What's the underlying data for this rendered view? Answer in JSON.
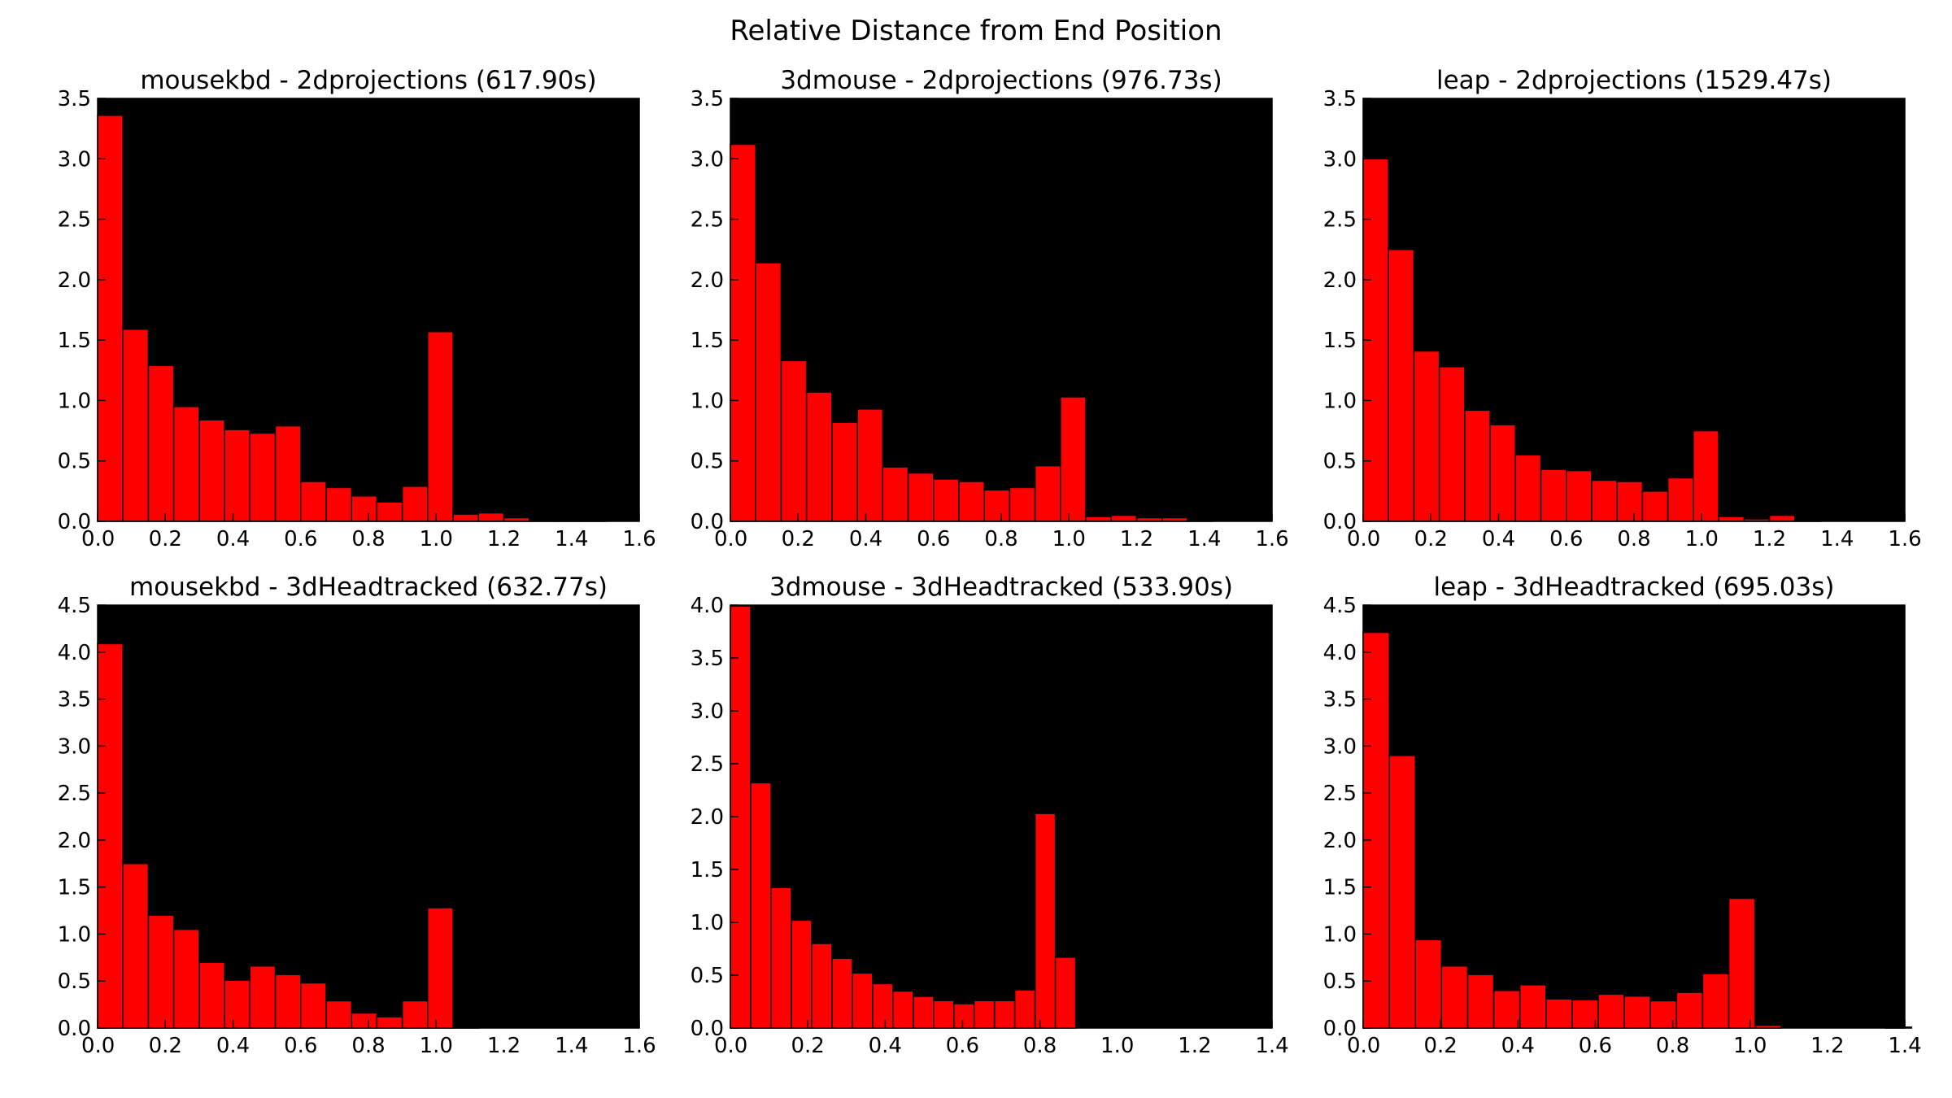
{
  "figure": {
    "title": "Relative Distance from End Position",
    "background": "#000000",
    "bar_color": "#ff0000"
  },
  "chart_data": [
    {
      "type": "bar",
      "title": "mousekbd - 2dprojections (617.90s)",
      "bin_width": 0.075,
      "x": [
        0.0,
        0.075,
        0.15,
        0.225,
        0.3,
        0.375,
        0.45,
        0.525,
        0.6,
        0.675,
        0.75,
        0.825,
        0.9,
        0.975,
        1.05,
        1.125,
        1.2,
        1.275,
        1.35,
        1.425
      ],
      "values": [
        3.36,
        1.59,
        1.29,
        0.95,
        0.84,
        0.76,
        0.73,
        0.79,
        0.33,
        0.28,
        0.21,
        0.16,
        0.29,
        1.57,
        0.06,
        0.07,
        0.03,
        0.01,
        0.01,
        0.01
      ],
      "xlim": [
        0.0,
        1.6
      ],
      "ylim": [
        0.0,
        3.5
      ],
      "xticks": [
        "0.0",
        "0.2",
        "0.4",
        "0.6",
        "0.8",
        "1.0",
        "1.2",
        "1.4",
        "1.6"
      ],
      "yticks": [
        "0.0",
        "0.5",
        "1.0",
        "1.5",
        "2.0",
        "2.5",
        "3.0",
        "3.5"
      ],
      "xlabel": "",
      "ylabel": "",
      "grid": false
    },
    {
      "type": "bar",
      "title": "3dmouse - 2dprojections (976.73s)",
      "bin_width": 0.075,
      "x": [
        0.0,
        0.075,
        0.15,
        0.225,
        0.3,
        0.375,
        0.45,
        0.525,
        0.6,
        0.675,
        0.75,
        0.825,
        0.9,
        0.975,
        1.05,
        1.125,
        1.2,
        1.275,
        1.35
      ],
      "values": [
        3.12,
        2.14,
        1.33,
        1.07,
        0.82,
        0.93,
        0.45,
        0.4,
        0.35,
        0.33,
        0.26,
        0.28,
        0.46,
        1.03,
        0.04,
        0.05,
        0.03,
        0.03,
        0.01
      ],
      "xlim": [
        0.0,
        1.6
      ],
      "ylim": [
        0.0,
        3.5
      ],
      "xticks": [
        "0.0",
        "0.2",
        "0.4",
        "0.6",
        "0.8",
        "1.0",
        "1.2",
        "1.4",
        "1.6"
      ],
      "yticks": [
        "0.0",
        "0.5",
        "1.0",
        "1.5",
        "2.0",
        "2.5",
        "3.0",
        "3.5"
      ],
      "xlabel": "",
      "ylabel": "",
      "grid": false
    },
    {
      "type": "bar",
      "title": "leap - 2dprojections (1529.47s)",
      "bin_width": 0.075,
      "x": [
        0.0,
        0.075,
        0.15,
        0.225,
        0.3,
        0.375,
        0.45,
        0.525,
        0.6,
        0.675,
        0.75,
        0.825,
        0.9,
        0.975,
        1.05,
        1.125,
        1.2,
        1.275
      ],
      "values": [
        3.0,
        2.25,
        1.41,
        1.28,
        0.92,
        0.8,
        0.55,
        0.43,
        0.42,
        0.34,
        0.33,
        0.25,
        0.36,
        0.75,
        0.04,
        0.02,
        0.05,
        0.01
      ],
      "xlim": [
        0.0,
        1.6
      ],
      "ylim": [
        0.0,
        3.5
      ],
      "xticks": [
        "0.0",
        "0.2",
        "0.4",
        "0.6",
        "0.8",
        "1.0",
        "1.2",
        "1.4",
        "1.6"
      ],
      "yticks": [
        "0.0",
        "0.5",
        "1.0",
        "1.5",
        "2.0",
        "2.5",
        "3.0",
        "3.5"
      ],
      "xlabel": "",
      "ylabel": "",
      "grid": false
    },
    {
      "type": "bar",
      "title": "mousekbd - 3dHeadtracked (632.77s)",
      "bin_width": 0.075,
      "x": [
        0.0,
        0.075,
        0.15,
        0.225,
        0.3,
        0.375,
        0.45,
        0.525,
        0.6,
        0.675,
        0.75,
        0.825,
        0.9,
        0.975,
        1.05
      ],
      "values": [
        4.09,
        1.75,
        1.2,
        1.05,
        0.7,
        0.51,
        0.66,
        0.57,
        0.48,
        0.29,
        0.16,
        0.12,
        0.29,
        1.28,
        0.01
      ],
      "xlim": [
        0.0,
        1.6
      ],
      "ylim": [
        0.0,
        4.5
      ],
      "xticks": [
        "0.0",
        "0.2",
        "0.4",
        "0.6",
        "0.8",
        "1.0",
        "1.2",
        "1.4",
        "1.6"
      ],
      "yticks": [
        "0.0",
        "0.5",
        "1.0",
        "1.5",
        "2.0",
        "2.5",
        "3.0",
        "3.5",
        "4.0",
        "4.5"
      ],
      "xlabel": "",
      "ylabel": "",
      "grid": false
    },
    {
      "type": "bar",
      "title": "3dmouse - 3dHeadtracked (533.90s)",
      "bin_width": 0.0525,
      "x": [
        0.0,
        0.0525,
        0.105,
        0.1575,
        0.21,
        0.2625,
        0.315,
        0.3675,
        0.42,
        0.4725,
        0.525,
        0.5775,
        0.63,
        0.6825,
        0.735,
        0.7875,
        0.84,
        0.8925,
        0.945,
        0.9975
      ],
      "values": [
        3.99,
        2.32,
        1.33,
        1.02,
        0.8,
        0.66,
        0.52,
        0.42,
        0.35,
        0.3,
        0.26,
        0.23,
        0.26,
        0.26,
        0.36,
        2.03,
        0.67,
        0.0,
        0.0,
        0.0
      ],
      "xlim": [
        0.0,
        1.4
      ],
      "ylim": [
        0.0,
        4.0
      ],
      "xticks": [
        "0.0",
        "0.2",
        "0.4",
        "0.6",
        "0.8",
        "1.0",
        "1.2",
        "1.4"
      ],
      "yticks": [
        "0.0",
        "0.5",
        "1.0",
        "1.5",
        "2.0",
        "2.5",
        "3.0",
        "3.5",
        "4.0"
      ],
      "xlabel": "",
      "ylabel": "",
      "grid": false
    },
    {
      "type": "bar",
      "title": "leap - 3dHeadtracked (695.03s)",
      "bin_width": 0.0675,
      "x": [
        0.0,
        0.0675,
        0.135,
        0.2025,
        0.27,
        0.3375,
        0.405,
        0.4725,
        0.54,
        0.6075,
        0.675,
        0.7425,
        0.81,
        0.8775,
        0.945,
        1.0125,
        1.08,
        1.1475,
        1.215,
        1.2825,
        1.35
      ],
      "values": [
        4.21,
        2.9,
        0.94,
        0.66,
        0.57,
        0.4,
        0.46,
        0.31,
        0.3,
        0.36,
        0.34,
        0.29,
        0.38,
        0.58,
        1.38,
        0.03,
        0.0,
        0.0,
        0.0,
        0.0,
        0.01
      ],
      "xlim": [
        0.0,
        1.4
      ],
      "ylim": [
        0.0,
        4.5
      ],
      "xticks": [
        "0.0",
        "0.2",
        "0.4",
        "0.6",
        "0.8",
        "1.0",
        "1.2",
        "1.4"
      ],
      "yticks": [
        "0.0",
        "0.5",
        "1.0",
        "1.5",
        "2.0",
        "2.5",
        "3.0",
        "3.5",
        "4.0",
        "4.5"
      ],
      "xlabel": "",
      "ylabel": "",
      "grid": false
    }
  ]
}
